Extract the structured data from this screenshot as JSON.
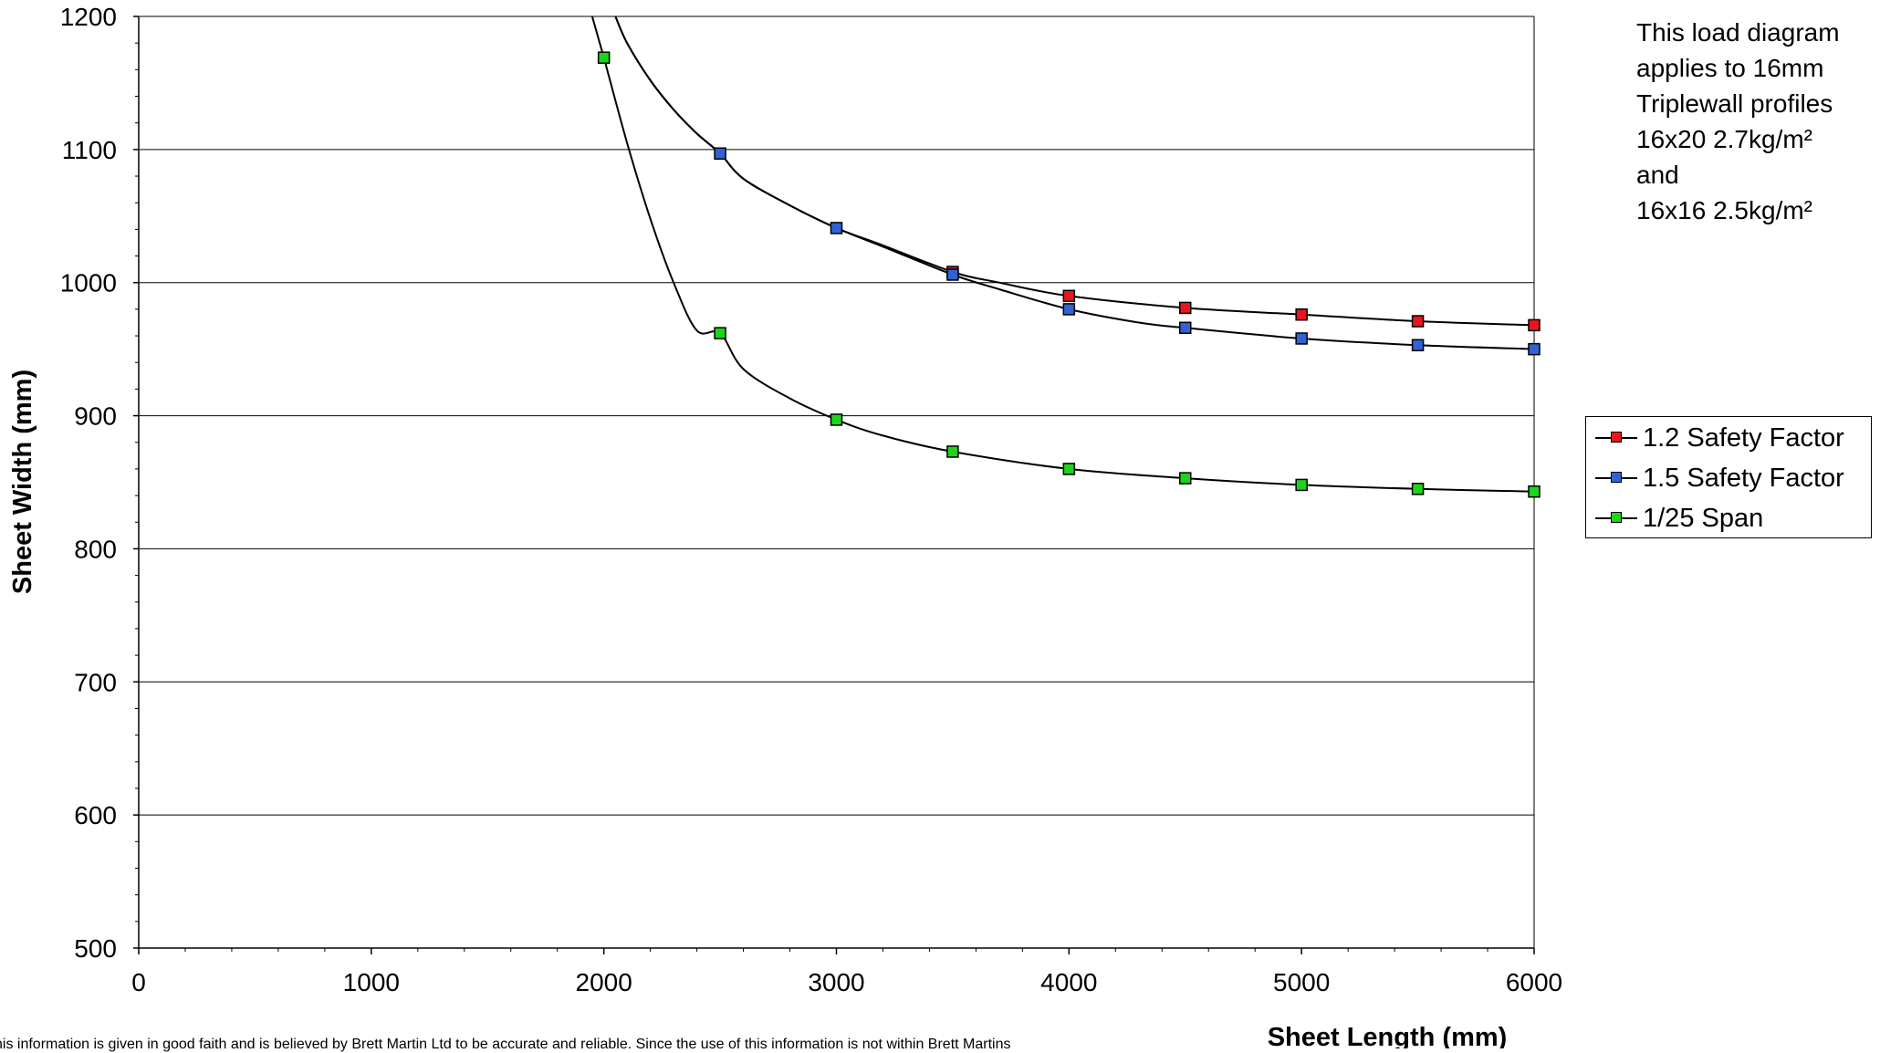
{
  "chart_data": {
    "type": "line",
    "title": "",
    "xlabel": "Sheet Length (mm)",
    "ylabel": "Sheet Width (mm)",
    "xlim": [
      0,
      6000
    ],
    "ylim": [
      500,
      1200
    ],
    "x_ticks": [
      "0",
      "1000",
      "2000",
      "3000",
      "4000",
      "5000",
      "6000"
    ],
    "y_ticks": [
      "500",
      "600",
      "700",
      "800",
      "900",
      "1000",
      "1100",
      "1200"
    ],
    "grid": "horizontal",
    "legend_position": "right",
    "series": [
      {
        "name": "1.2 Safety Factor",
        "color": "#e8171c",
        "x": [
          3500,
          4000,
          4500,
          5000,
          5500,
          6000
        ],
        "y": [
          1008,
          990,
          981,
          976,
          971,
          968
        ],
        "curve_x": [
          2050,
          2100,
          2200,
          2300,
          2400,
          2500,
          2600,
          2800,
          3000,
          3200,
          3500,
          3700,
          4000,
          4500,
          5000,
          5500,
          6000
        ],
        "curve_y": [
          1200,
          1180,
          1152,
          1130,
          1112,
          1097,
          1078,
          1058,
          1041,
          1028,
          1008,
          1000,
          990,
          981,
          976,
          971,
          968
        ]
      },
      {
        "name": "1.5 Safety Factor",
        "color": "#3062d6",
        "x": [
          2500,
          3000,
          3500,
          4000,
          4500,
          5000,
          5500,
          6000
        ],
        "y": [
          1097,
          1041,
          1006,
          980,
          966,
          958,
          953,
          950
        ],
        "curve_x": [
          2050,
          2100,
          2200,
          2300,
          2400,
          2500,
          2600,
          2800,
          3000,
          3200,
          3500,
          3700,
          4000,
          4300,
          4500,
          5000,
          5500,
          6000
        ],
        "curve_y": [
          1200,
          1180,
          1152,
          1130,
          1112,
          1097,
          1078,
          1058,
          1041,
          1027,
          1006,
          995,
          980,
          970,
          966,
          958,
          953,
          950
        ]
      },
      {
        "name": "1/25 Span",
        "color": "#1dd41a",
        "x": [
          2000,
          2500,
          3000,
          3500,
          4000,
          4500,
          5000,
          5500,
          6000
        ],
        "y": [
          1169,
          962,
          897,
          873,
          860,
          853,
          848,
          845,
          843
        ],
        "curve_x": [
          1950,
          2000,
          2100,
          2200,
          2300,
          2400,
          2500,
          2600,
          2800,
          3000,
          3200,
          3500,
          4000,
          4500,
          5000,
          5500,
          6000
        ],
        "curve_y": [
          1200,
          1169,
          1105,
          1048,
          1000,
          964,
          962,
          935,
          913,
          897,
          885,
          873,
          860,
          853,
          848,
          845,
          843
        ]
      }
    ],
    "annotations": [
      "This load diagram",
      "applies to 16mm",
      "Triplewall profiles",
      "16x20 2.7kg/m²",
      "and",
      "16x16 2.5kg/m²"
    ]
  },
  "footer": {
    "disclaimer": "his information is given in good faith and is believed by Brett Martin Ltd to be accurate and reliable. Since the use of this information is not within Brett Martins"
  }
}
